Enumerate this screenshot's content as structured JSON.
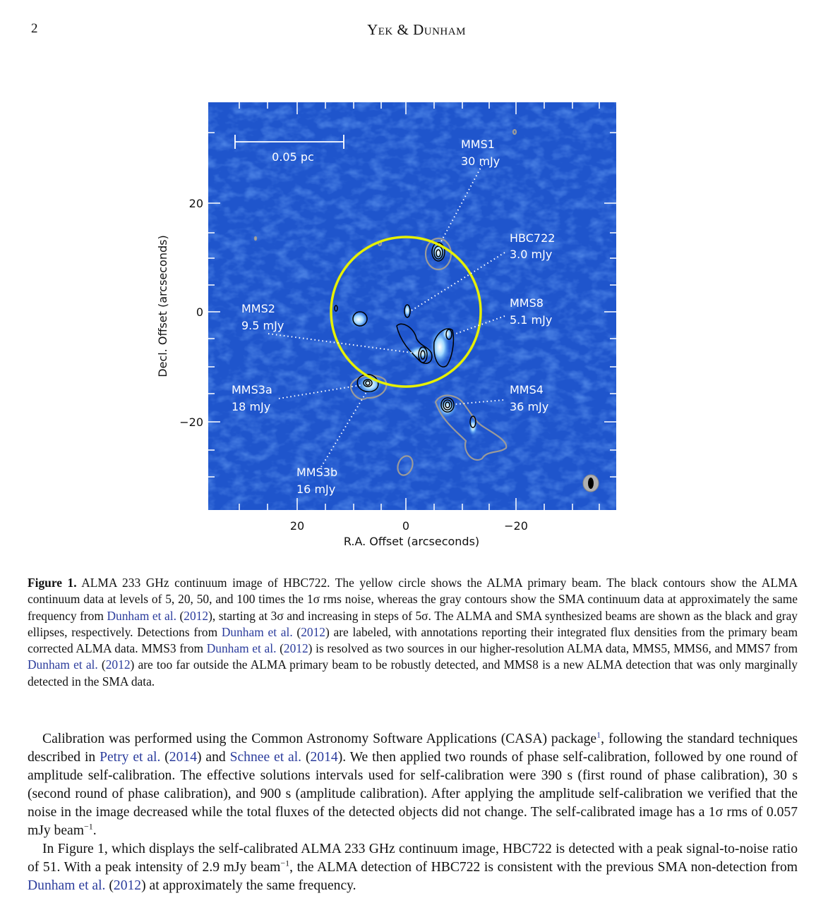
{
  "header": {
    "page_number": "2",
    "running_head": "Yek & Dunham"
  },
  "figure": {
    "scale_bar_label": "0.05 pc",
    "xlabel": "R.A. Offset (arcseconds)",
    "ylabel": "Decl. Offset (arcseconds)",
    "x_ticks": [
      "20",
      "0",
      "−20"
    ],
    "y_ticks": [
      "20",
      "0",
      "−20"
    ],
    "sources": [
      {
        "name": "MMS1",
        "flux": "30 mJy"
      },
      {
        "name": "HBC722",
        "flux": "3.0 mJy"
      },
      {
        "name": "MMS8",
        "flux": "5.1 mJy"
      },
      {
        "name": "MMS2",
        "flux": "9.5 mJy"
      },
      {
        "name": "MMS3a",
        "flux": "18 mJy"
      },
      {
        "name": "MMS4",
        "flux": "36 mJy"
      },
      {
        "name": "MMS3b",
        "flux": "16 mJy"
      }
    ],
    "colors": {
      "background": "#1f55cc",
      "primary_beam": "#e6f000",
      "alma_contour": "#000000",
      "sma_contour": "#9a9a9a"
    }
  },
  "caption": {
    "label": "Figure 1.",
    "t1": " ALMA 233 GHz continuum image of HBC722.  The yellow circle shows the ALMA primary beam.  The black contours show the ALMA continuum data at levels of 5, 20, 50, and 100 times the 1σ rms noise, whereas the gray contours show the SMA continuum data at approximately the same frequency from ",
    "c1": "Dunham et al.",
    "y1": "2012",
    "t2": "), starting at 3σ and increasing in steps of 5σ. The ALMA and SMA synthesized beams are shown as the black and gray ellipses, respectively. Detections from ",
    "c2": "Dunham et al.",
    "y2": "2012",
    "t3": ") are labeled, with annotations reporting their integrated flux densities from the primary beam corrected ALMA data. MMS3 from ",
    "c3": "Dunham et al.",
    "y3": "2012",
    "t4": ") is resolved as two sources in our higher-resolution ALMA data, MMS5, MMS6, and MMS7 from ",
    "c4": "Dunham et al.",
    "y4": "2012",
    "t5": ") are too far outside the ALMA primary beam to be robustly detected, and MMS8 is a new ALMA detection that was only marginally detected in the SMA data."
  },
  "body": {
    "p1a": "Calibration was performed using the Common Astronomy Software Applications (CASA) package",
    "p1fn": "1",
    "p1b": ", following the standard techniques described in ",
    "p1c1": "Petry et al.",
    "p1y1": "2014",
    "p1d": ") and ",
    "p1c2": "Schnee et al.",
    "p1y2": "2014",
    "p1e": "). We then applied two rounds of phase self-calibration, followed by one round of amplitude self-calibration.  The effective solutions intervals used for self-calibration were 390 s (first round of phase calibration), 30 s (second round of phase calibration), and 900 s (amplitude calibration). After applying the amplitude self-calibration we verified that the noise in the image decreased while the total fluxes of the detected objects did not change. The self-calibrated image has a 1σ rms of 0.057 mJy beam",
    "p1exp": "−1",
    "p1end": ".",
    "p2a": "In Figure 1, which displays the self-calibrated ALMA 233 GHz continuum image, HBC722 is detected with a peak signal-to-noise ratio of 51.  With a peak intensity of 2.9 mJy beam",
    "p2exp": "−1",
    "p2b": ", the ALMA detection of HBC722 is consistent with the previous SMA non-detection from ",
    "p2c": "Dunham et al.",
    "p2y": "2012",
    "p2d": ") at approximately the same frequency."
  }
}
